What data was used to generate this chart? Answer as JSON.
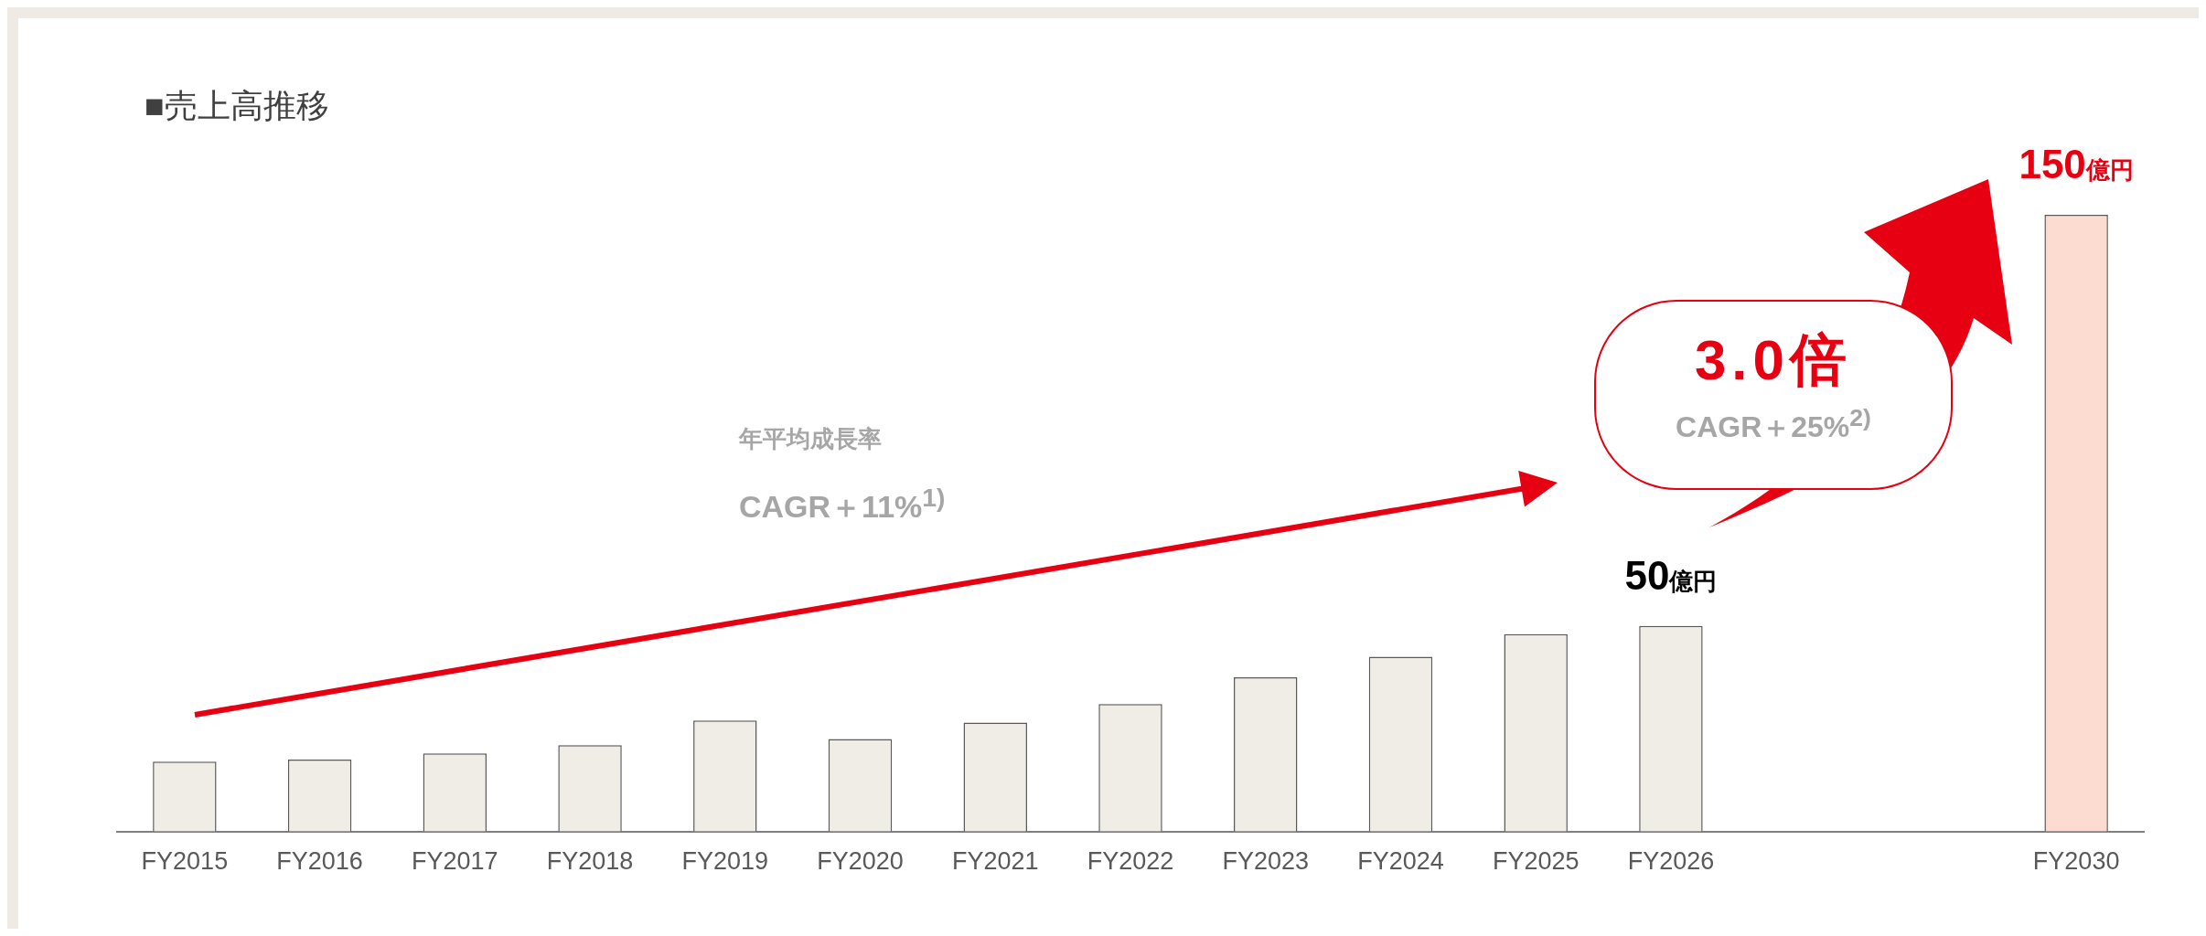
{
  "chart_data": {
    "type": "bar",
    "title": "■売上高推移",
    "categories": [
      "FY2015",
      "FY2016",
      "FY2017",
      "FY2018",
      "FY2019",
      "FY2020",
      "FY2021",
      "FY2022",
      "FY2023",
      "FY2024",
      "FY2025",
      "FY2026",
      null,
      null,
      "FY2030"
    ],
    "values": [
      17,
      17.5,
      19,
      21,
      27,
      22.5,
      26.5,
      31,
      37.5,
      42.5,
      48,
      50,
      null,
      null,
      150
    ],
    "colors": [
      "#f0ede6",
      "#f0ede6",
      "#f0ede6",
      "#f0ede6",
      "#f0ede6",
      "#f0ede6",
      "#f0ede6",
      "#f0ede6",
      "#f0ede6",
      "#f0ede6",
      "#f0ede6",
      "#f0ede6",
      "#f0ede6",
      "#f0ede6",
      "#fcdcd0"
    ],
    "value_labels": [
      null,
      null,
      null,
      null,
      null,
      null,
      null,
      null,
      null,
      null,
      null,
      "50億円",
      null,
      null,
      "150億円"
    ],
    "annotations": [
      "年平均成長率",
      "CAGR＋11%$^{1)}$",
      "3.0倍",
      "CAGR＋25%$^{2)}$"
    ],
    "grid": false,
    "legend": false
  }
}
